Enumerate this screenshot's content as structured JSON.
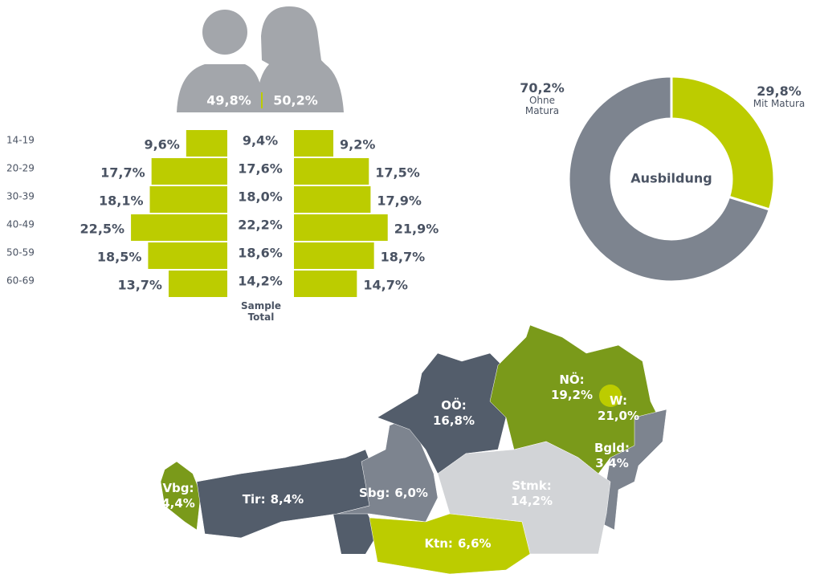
{
  "gender_split": {
    "values": [
      49.8,
      50.2
    ],
    "value_labels": [
      "49,8%",
      "50,2%"
    ]
  },
  "chart_data": [
    {
      "type": "pyramid",
      "categories": [
        "14-19",
        "20-29",
        "30-39",
        "40-49",
        "50-59",
        "60-69"
      ],
      "color": "#bccc00",
      "series": [
        {
          "values": [
            9.6,
            17.7,
            18.1,
            22.5,
            18.5,
            13.7
          ],
          "value_labels": [
            "9,6%",
            "17,7%",
            "18,1%",
            "22,5%",
            "18,5%",
            "13,7%"
          ]
        },
        {
          "name": "Sample Total",
          "values": [
            9.4,
            17.6,
            18.0,
            22.2,
            18.6,
            14.2
          ],
          "value_labels": [
            "9,4%",
            "17,6%",
            "18,0%",
            "22,2%",
            "18,6%",
            "14,2%"
          ]
        },
        {
          "values": [
            9.2,
            17.5,
            17.9,
            21.9,
            18.7,
            14.7
          ],
          "value_labels": [
            "9,2%",
            "17,5%",
            "17,9%",
            "21,9%",
            "18,7%",
            "14,7%"
          ]
        }
      ]
    },
    {
      "type": "pie",
      "title": "Ausbildung",
      "categories": [
        "Mit Matura",
        "Ohne Matura"
      ],
      "values": [
        29.8,
        70.2
      ],
      "value_labels": [
        "29,8%",
        "70,2%"
      ],
      "colors": [
        "#bccc00",
        "#7d848f"
      ]
    },
    {
      "type": "map",
      "categories": [
        "Vbg:",
        "Tir:",
        "Sbg:",
        "OÖ:",
        "NÖ:",
        "W:",
        "Bgld:",
        "Stmk:",
        "Ktn:"
      ],
      "values": [
        4.4,
        8.4,
        6.0,
        16.8,
        19.2,
        21.0,
        3.4,
        14.2,
        6.6
      ],
      "value_labels": [
        "4,4%",
        "8,4%",
        "6,0%",
        "16,8%",
        "19,2%",
        "21,0%",
        "3,4%",
        "14,2%",
        "6,6%"
      ],
      "colors": [
        "#7a9a1a",
        "#535d6b",
        "#7d848f",
        "#535d6b",
        "#7a9a1a",
        "#bccc00",
        "#7d848f",
        "#d2d4d7",
        "#bccc00"
      ]
    }
  ]
}
